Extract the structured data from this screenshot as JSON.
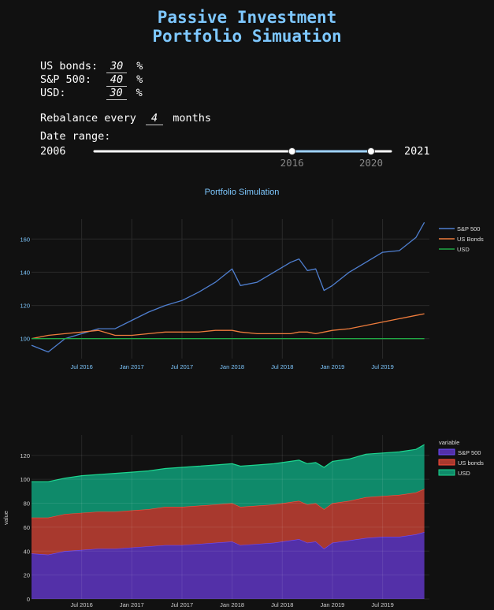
{
  "title_line1": "Passive Investment",
  "title_line2": "Portfolio Simuation",
  "allocation": [
    {
      "label": "US bonds:",
      "value": "30",
      "unit": "%"
    },
    {
      "label": "S&P 500:",
      "value": "40",
      "unit": "%"
    },
    {
      "label": "USD:",
      "value": "30",
      "unit": "%"
    }
  ],
  "rebalance": {
    "prefix": "Rebalance every",
    "value": "4",
    "suffix": "months"
  },
  "date_range": {
    "label": "Date range:",
    "min_label": "2006",
    "max_label": "2021",
    "min": 2006,
    "max": 2021,
    "selected_start": 2016,
    "selected_end": 2020,
    "start_label": "2016",
    "end_label": "2020"
  },
  "colors": {
    "sp500": "#4f7fd0",
    "bonds": "#ef7c3c",
    "usd": "#21a845",
    "area_sp500": "#5330a8",
    "area_bonds": "#a8392e",
    "area_usd": "#0f8a6a"
  },
  "chart_data": [
    {
      "type": "line",
      "title": "Portfolio Simulation",
      "x_ticks": [
        "Jul 2016",
        "Jan 2017",
        "Jul 2017",
        "Jan 2018",
        "Jul 2018",
        "Jan 2019",
        "Jul 2019"
      ],
      "y_ticks": [
        100,
        120,
        140,
        160
      ],
      "ylim": [
        88,
        172
      ],
      "x": [
        "Jan 2016",
        "Mar 2016",
        "May 2016",
        "Jul 2016",
        "Sep 2016",
        "Nov 2016",
        "Jan 2017",
        "Mar 2017",
        "May 2017",
        "Jul 2017",
        "Sep 2017",
        "Nov 2017",
        "Jan 2018",
        "Feb 2018",
        "Apr 2018",
        "Jun 2018",
        "Aug 2018",
        "Sep 2018",
        "Oct 2018",
        "Nov 2018",
        "Dec 2018",
        "Jan 2019",
        "Mar 2019",
        "May 2019",
        "Jul 2019",
        "Sep 2019",
        "Nov 2019",
        "Dec 2019"
      ],
      "series": [
        {
          "name": "S&P 500",
          "values": [
            96,
            92,
            100,
            103,
            106,
            106,
            111,
            116,
            120,
            123,
            128,
            134,
            142,
            132,
            134,
            140,
            146,
            148,
            141,
            142,
            129,
            132,
            140,
            146,
            152,
            153,
            161,
            170
          ]
        },
        {
          "name": "US Bonds",
          "values": [
            100,
            102,
            103,
            104,
            105,
            102,
            102,
            103,
            104,
            104,
            104,
            105,
            105,
            104,
            103,
            103,
            103,
            104,
            104,
            103,
            104,
            105,
            106,
            108,
            110,
            112,
            114,
            115
          ]
        },
        {
          "name": "USD",
          "values": [
            100,
            100,
            100,
            100,
            100,
            100,
            100,
            100,
            100,
            100,
            100,
            100,
            100,
            100,
            100,
            100,
            100,
            100,
            100,
            100,
            100,
            100,
            100,
            100,
            100,
            100,
            100,
            100
          ]
        }
      ],
      "legend_position": "top-right"
    },
    {
      "type": "area",
      "ylabel": "value",
      "legend_title": "variable",
      "x_ticks": [
        "Jul 2016",
        "Jan 2017",
        "Jul 2017",
        "Jan 2018",
        "Jul 2018",
        "Jan 2019",
        "Jul 2019"
      ],
      "y_ticks": [
        0,
        20,
        40,
        60,
        80,
        100,
        120
      ],
      "ylim": [
        0,
        137
      ],
      "x": [
        "Jan 2016",
        "Mar 2016",
        "May 2016",
        "Jul 2016",
        "Sep 2016",
        "Nov 2016",
        "Jan 2017",
        "Mar 2017",
        "May 2017",
        "Jul 2017",
        "Sep 2017",
        "Nov 2017",
        "Jan 2018",
        "Feb 2018",
        "Apr 2018",
        "Jun 2018",
        "Aug 2018",
        "Sep 2018",
        "Oct 2018",
        "Nov 2018",
        "Dec 2018",
        "Jan 2019",
        "Mar 2019",
        "May 2019",
        "Jul 2019",
        "Sep 2019",
        "Nov 2019",
        "Dec 2019"
      ],
      "series": [
        {
          "name": "S&P 500",
          "values": [
            38,
            37,
            40,
            41,
            42,
            42,
            43,
            44,
            45,
            45,
            46,
            47,
            48,
            45,
            46,
            47,
            49,
            50,
            47,
            48,
            42,
            47,
            49,
            51,
            52,
            52,
            54,
            56
          ]
        },
        {
          "name": "US bonds",
          "values": [
            30,
            31,
            31,
            31,
            31,
            31,
            31,
            31,
            32,
            32,
            32,
            32,
            32,
            32,
            32,
            32,
            32,
            32,
            32,
            32,
            33,
            33,
            33,
            34,
            34,
            35,
            35,
            36
          ]
        },
        {
          "name": "USD",
          "values": [
            30,
            30,
            30,
            31,
            31,
            32,
            32,
            32,
            32,
            33,
            33,
            33,
            33,
            34,
            34,
            34,
            34,
            34,
            34,
            34,
            35,
            35,
            35,
            36,
            36,
            36,
            36,
            37
          ]
        }
      ],
      "legend_position": "top-right"
    }
  ]
}
